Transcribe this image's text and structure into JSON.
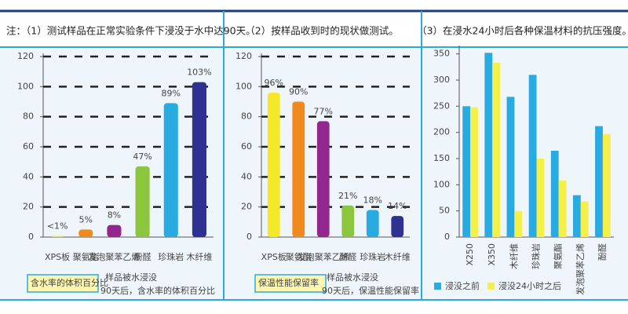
{
  "chart_data": [
    {
      "type": "bar",
      "title": "注：（1）测试样品在正常实验条件下浸没于水中达90天。",
      "categories": [
        "XPS板",
        "聚氨酯",
        "发泡聚苯乙烯",
        "酚醛",
        "珍珠岩",
        "木纤维"
      ],
      "values": [
        0.8,
        5,
        8,
        47,
        89,
        103
      ],
      "value_labels": [
        "<1%",
        "5%",
        "8%",
        "47%",
        "89%",
        "103%"
      ],
      "colors": [
        "#f5e829",
        "#f08a1e",
        "#93278f",
        "#8cc63f",
        "#29abe2",
        "#2e3192"
      ],
      "ylim": [
        0,
        120
      ],
      "yticks": [
        0,
        20,
        40,
        60,
        80,
        100,
        120
      ],
      "grid": true,
      "legend_label": "含水率的体积百分比",
      "note_lines": [
        "样品被水浸没",
        "90天后，含水率的体积百分比"
      ]
    },
    {
      "type": "bar",
      "title": "（2）按样品收到时的现状做测试。",
      "categories": [
        "XPS板",
        "聚氨酯",
        "发泡聚苯乙烯",
        "酚醛",
        "珍珠岩",
        "木纤维"
      ],
      "values": [
        96,
        90,
        77,
        21,
        18,
        14
      ],
      "value_labels": [
        "96%",
        "90%",
        "77%",
        "21%",
        "18%",
        "14%"
      ],
      "colors": [
        "#f5e829",
        "#f08a1e",
        "#93278f",
        "#8cc63f",
        "#29abe2",
        "#2e3192"
      ],
      "ylim": [
        0,
        120
      ],
      "yticks": [
        0,
        20,
        40,
        60,
        80,
        100,
        120
      ],
      "grid": true,
      "legend_label": "保温性能保留率",
      "note_lines": [
        "样品被水浸没",
        "90天后，保温性能保留率"
      ]
    },
    {
      "type": "grouped_bar",
      "title": "（3）在浸水24小时后各种保温材料的抗压强度。",
      "categories": [
        "X250",
        "X350",
        "木纤维",
        "珍珠岩",
        "聚氨酯",
        "发泡聚苯乙烯",
        "酚醛"
      ],
      "series": [
        {
          "name": "浸没之前",
          "color": "#29abe2",
          "values": [
            250,
            352,
            268,
            310,
            165,
            80,
            212
          ]
        },
        {
          "name": "浸没24小时之后",
          "color": "#f5ef4a",
          "values": [
            248,
            333,
            50,
            150,
            108,
            68,
            197
          ]
        }
      ],
      "ylim": [
        0,
        360
      ],
      "yticks": [
        0,
        50,
        100,
        150,
        200,
        250,
        300,
        350
      ],
      "grid": false
    }
  ]
}
